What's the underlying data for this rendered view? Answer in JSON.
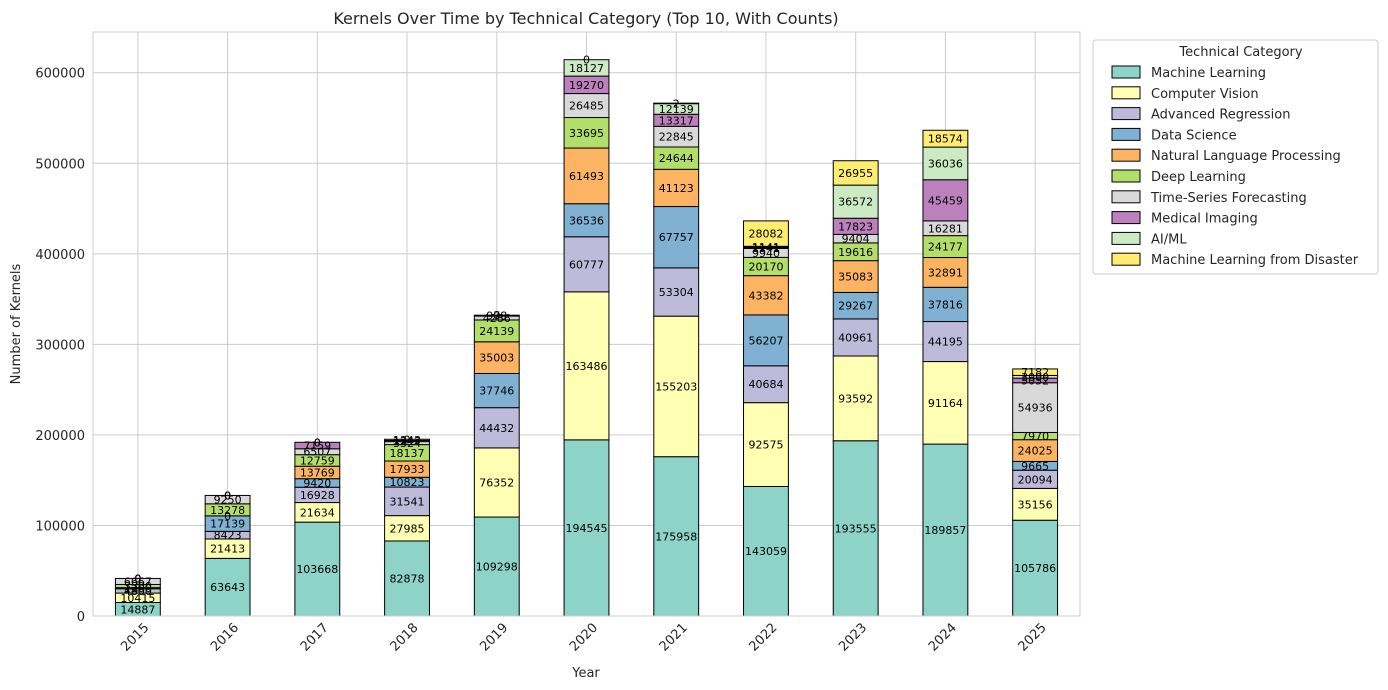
{
  "chart_data": {
    "type": "bar",
    "stacked": true,
    "title": "Kernels Over Time by Technical Category (Top 10, With Counts)",
    "xlabel": "Year",
    "ylabel": "Number of Kernels",
    "ylim": [
      0,
      645000
    ],
    "yticks": [
      "0",
      "100000",
      "200000",
      "300000",
      "400000",
      "500000",
      "600000"
    ],
    "grid": true,
    "legend": {
      "title": "Technical Category",
      "placement": "outside-top-right"
    },
    "categories": [
      "2015",
      "2016",
      "2017",
      "2018",
      "2019",
      "2020",
      "2021",
      "2022",
      "2023",
      "2024",
      "2025"
    ],
    "series": [
      {
        "name": "Machine Learning",
        "color": "#8dd3c7",
        "values": [
          14887,
          63643,
          103668,
          82878,
          109298,
          194545,
          175958,
          143059,
          193555,
          189857,
          105786
        ],
        "labels": [
          "14887",
          "63643",
          "103668",
          "82878",
          "109298",
          "194545",
          "175958",
          "143059",
          "193555",
          "189857",
          "105786"
        ]
      },
      {
        "name": "Computer Vision",
        "color": "#ffffb3",
        "values": [
          10415,
          21413,
          21634,
          27985,
          76352,
          163486,
          155203,
          92575,
          93592,
          91164,
          35156
        ],
        "labels": [
          "10415",
          "21413",
          "21634",
          "27985",
          "76352",
          "163486",
          "155203",
          "92575",
          "93592",
          "91164",
          "35156"
        ]
      },
      {
        "name": "Advanced Regression",
        "color": "#bebada",
        "values": [
          4800,
          8423,
          16928,
          31541,
          44432,
          60777,
          53304,
          40684,
          40961,
          44195,
          20094
        ],
        "labels": [
          "4800",
          "8423",
          "16928",
          "31541",
          "44432",
          "60777",
          "53304",
          "40684",
          "40961",
          "44195",
          "20094"
        ]
      },
      {
        "name": "Data Science",
        "color": "#80b1d3",
        "values": [
          1200,
          17139,
          9420,
          10823,
          37746,
          36536,
          67757,
          56207,
          29267,
          37816,
          9665
        ],
        "labels": [
          "1200",
          "17139",
          "9420",
          "10823",
          "37746",
          "36536",
          "67757",
          "56207",
          "29267",
          "37816",
          "9665"
        ]
      },
      {
        "name": "Natural Language Processing",
        "color": "#fdb462",
        "values": [
          0,
          0,
          13769,
          17933,
          35003,
          61493,
          41123,
          43382,
          35083,
          32891,
          24025
        ],
        "labels": [
          "0",
          "0",
          "13769",
          "17933",
          "35003",
          "61493",
          "41123",
          "43382",
          "35083",
          "32891",
          "24025"
        ]
      },
      {
        "name": "Deep Learning",
        "color": "#b3de69",
        "values": [
          3500,
          13278,
          12759,
          18137,
          24139,
          33695,
          24644,
          20170,
          19616,
          24177,
          7970
        ],
        "labels": [
          "3500",
          "13278",
          "12759",
          "18137",
          "24139",
          "33695",
          "24644",
          "20170",
          "19616",
          "24177",
          "7970"
        ]
      },
      {
        "name": "Time-Series Forecasting",
        "color": "#d9d9d9",
        "values": [
          6667,
          9250,
          6507,
          3324,
          4286,
          26485,
          22845,
          9940,
          9404,
          16281,
          54936
        ],
        "labels": [
          "6667",
          "9250",
          "6507",
          "3324",
          "4286",
          "26485",
          "22845",
          "9940",
          "9404",
          "16281",
          "54936"
        ]
      },
      {
        "name": "Medical Imaging",
        "color": "#bc80bd",
        "values": [
          0,
          0,
          7159,
          1242,
          978,
          19270,
          13317,
          1141,
          17823,
          45459,
          5052
        ],
        "labels": [
          "0",
          "0",
          "7159",
          "1242",
          "978",
          "19270",
          "13317",
          "1141",
          "17823",
          "45459",
          "5052"
        ]
      },
      {
        "name": "AI/ML",
        "color": "#ccebc5",
        "values": [
          0,
          0,
          0,
          1343,
          0,
          18127,
          12139,
          1141,
          36572,
          36036,
          3000
        ],
        "labels": [
          "0",
          "0",
          "0",
          "1343",
          "0",
          "18127",
          "12139",
          "1141",
          "36572",
          "36036",
          "3000"
        ]
      },
      {
        "name": "Machine Learning from Disaster",
        "color": "#ffed6f",
        "values": [
          0,
          0,
          0,
          0,
          0,
          0,
          2,
          28082,
          26955,
          18574,
          7182
        ],
        "labels": [
          "0",
          "0",
          "0",
          "0",
          "0",
          "0",
          "2",
          "28082",
          "26955",
          "18574",
          "7182"
        ]
      }
    ]
  }
}
